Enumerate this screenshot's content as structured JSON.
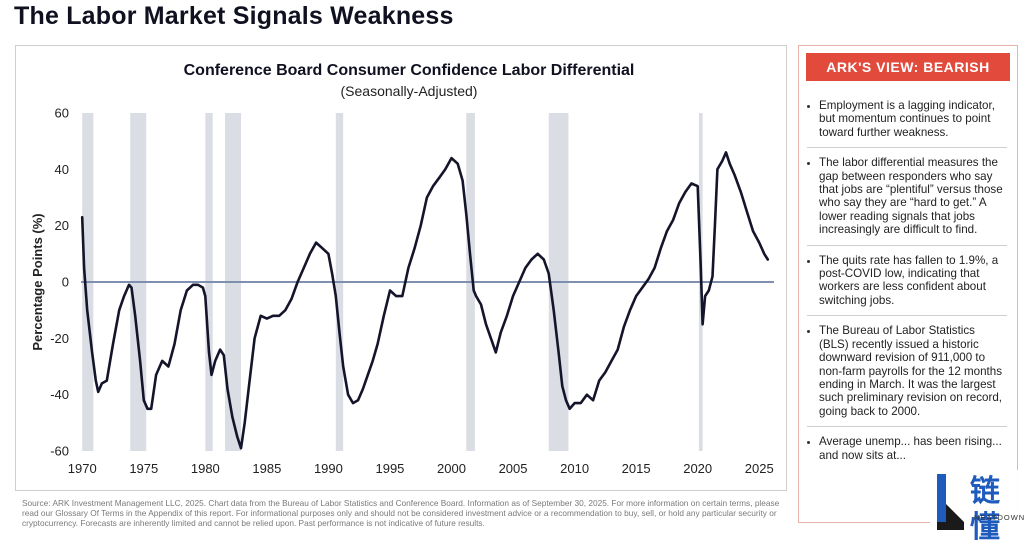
{
  "page_title": "The Labor Market Signals Weakness",
  "source_note": "Source: ARK Investment Management LLC, 2025. Chart data from the Bureau of Labor Statistics and Conference Board. Information as of September 30, 2025. For more information on certain terms, please read our Glossary Of Terms in the Appendix of this report. For informational purposes only and should not be considered investment advice or a recommendation to buy, sell, or hold any particular security or cryptocurrency. Forecasts are inherently limited and cannot be relied upon. Past performance is not indicative of future results.",
  "view_panel": {
    "header": "ARK'S VIEW: BEARISH",
    "items": [
      "Employment is a lagging indicator, but momentum continues to point toward further weakness.",
      "The labor differential measures the gap between responders who say that jobs are “plentiful” versus those who say they are “hard to get.” A lower reading signals that jobs increasingly are difficult to find.",
      "The quits rate has fallen to 1.9%, a post-COVID low, indicating that workers are less confident about switching jobs.",
      "The Bureau of Labor Statistics (BLS) recently issued a historic downward revision of 911,000 to non-farm payrolls for the 12 months ending in March. It was the largest such preliminary revision on record, going back to 2000.",
      "Average unemp... has been rising... and now sits at..."
    ]
  },
  "watermark": {
    "text": "链懂",
    "domain": "NEATDOWN.COM",
    "logo_color": "#1e5bbd"
  },
  "colors": {
    "line": "#14142b",
    "zero_line": "#7f8fb0",
    "recession": "#dadde3",
    "accent": "#e24a3c"
  },
  "chart_data": {
    "type": "line",
    "title": "Conference Board Consumer Confidence Labor Differential",
    "subtitle": "(Seasonally-Adjusted)",
    "xlabel": "",
    "ylabel": "Percentage Points (%)",
    "xlim": [
      1969.9,
      2026.2
    ],
    "ylim": [
      -60,
      60
    ],
    "x_ticks": [
      1970,
      1975,
      1980,
      1985,
      1990,
      1995,
      2000,
      2005,
      2010,
      2015,
      2020,
      2025
    ],
    "y_ticks": [
      60,
      40,
      20,
      0,
      -20,
      -40,
      -60
    ],
    "grid": false,
    "legend": "none",
    "reference_line_y": 0,
    "recessions": [
      [
        1970.0,
        1970.9
      ],
      [
        1973.9,
        1975.2
      ],
      [
        1980.0,
        1980.6
      ],
      [
        1981.6,
        1982.9
      ],
      [
        1990.6,
        1991.2
      ],
      [
        2001.2,
        2001.9
      ],
      [
        2007.9,
        2009.5
      ],
      [
        2020.1,
        2020.4
      ]
    ],
    "series": [
      {
        "points": [
          [
            1970.0,
            23
          ],
          [
            1970.15,
            5
          ],
          [
            1970.4,
            -10
          ],
          [
            1970.8,
            -25
          ],
          [
            1971.1,
            -35
          ],
          [
            1971.3,
            -39
          ],
          [
            1971.6,
            -36
          ],
          [
            1972.0,
            -35
          ],
          [
            1972.5,
            -22
          ],
          [
            1973.0,
            -10
          ],
          [
            1973.4,
            -5
          ],
          [
            1973.8,
            -1
          ],
          [
            1974.0,
            -2
          ],
          [
            1974.3,
            -12
          ],
          [
            1974.7,
            -28
          ],
          [
            1975.0,
            -42
          ],
          [
            1975.3,
            -45
          ],
          [
            1975.6,
            -45
          ],
          [
            1976.0,
            -33
          ],
          [
            1976.5,
            -28
          ],
          [
            1977.0,
            -30
          ],
          [
            1977.5,
            -22
          ],
          [
            1978.0,
            -10
          ],
          [
            1978.5,
            -3
          ],
          [
            1979.0,
            -1
          ],
          [
            1979.4,
            -1
          ],
          [
            1979.8,
            -2
          ],
          [
            1980.0,
            -5
          ],
          [
            1980.3,
            -25
          ],
          [
            1980.5,
            -33
          ],
          [
            1980.8,
            -28
          ],
          [
            1981.2,
            -24
          ],
          [
            1981.5,
            -26
          ],
          [
            1981.8,
            -38
          ],
          [
            1982.2,
            -48
          ],
          [
            1982.6,
            -55
          ],
          [
            1982.9,
            -59
          ],
          [
            1983.2,
            -50
          ],
          [
            1983.6,
            -35
          ],
          [
            1984.0,
            -20
          ],
          [
            1984.5,
            -12
          ],
          [
            1985.0,
            -13
          ],
          [
            1985.5,
            -12
          ],
          [
            1986.0,
            -12
          ],
          [
            1986.5,
            -10
          ],
          [
            1987.0,
            -6
          ],
          [
            1987.5,
            0
          ],
          [
            1988.0,
            5
          ],
          [
            1988.5,
            10
          ],
          [
            1989.0,
            14
          ],
          [
            1989.5,
            12
          ],
          [
            1990.0,
            10
          ],
          [
            1990.3,
            3
          ],
          [
            1990.6,
            -5
          ],
          [
            1990.9,
            -18
          ],
          [
            1991.2,
            -30
          ],
          [
            1991.6,
            -40
          ],
          [
            1992.0,
            -43
          ],
          [
            1992.4,
            -42
          ],
          [
            1992.8,
            -38
          ],
          [
            1993.2,
            -33
          ],
          [
            1993.6,
            -28
          ],
          [
            1994.0,
            -22
          ],
          [
            1994.5,
            -12
          ],
          [
            1995.0,
            -3
          ],
          [
            1995.5,
            -5
          ],
          [
            1996.0,
            -5
          ],
          [
            1996.5,
            5
          ],
          [
            1997.0,
            12
          ],
          [
            1997.5,
            20
          ],
          [
            1998.0,
            30
          ],
          [
            1998.5,
            34
          ],
          [
            1999.0,
            37
          ],
          [
            1999.5,
            40
          ],
          [
            2000.0,
            44
          ],
          [
            2000.5,
            42
          ],
          [
            2000.9,
            36
          ],
          [
            2001.2,
            24
          ],
          [
            2001.5,
            10
          ],
          [
            2001.8,
            -3
          ],
          [
            2002.0,
            -5
          ],
          [
            2002.4,
            -8
          ],
          [
            2002.8,
            -15
          ],
          [
            2003.2,
            -20
          ],
          [
            2003.6,
            -25
          ],
          [
            2004.0,
            -18
          ],
          [
            2004.5,
            -12
          ],
          [
            2005.0,
            -5
          ],
          [
            2005.5,
            0
          ],
          [
            2006.0,
            5
          ],
          [
            2006.5,
            8
          ],
          [
            2007.0,
            10
          ],
          [
            2007.5,
            8
          ],
          [
            2007.9,
            3
          ],
          [
            2008.3,
            -10
          ],
          [
            2008.7,
            -25
          ],
          [
            2009.0,
            -37
          ],
          [
            2009.3,
            -42
          ],
          [
            2009.6,
            -45
          ],
          [
            2010.0,
            -43
          ],
          [
            2010.5,
            -43
          ],
          [
            2011.0,
            -40
          ],
          [
            2011.5,
            -42
          ],
          [
            2012.0,
            -35
          ],
          [
            2012.5,
            -32
          ],
          [
            2013.0,
            -28
          ],
          [
            2013.5,
            -24
          ],
          [
            2014.0,
            -16
          ],
          [
            2014.5,
            -10
          ],
          [
            2015.0,
            -5
          ],
          [
            2015.5,
            -2
          ],
          [
            2016.0,
            1
          ],
          [
            2016.5,
            5
          ],
          [
            2017.0,
            12
          ],
          [
            2017.5,
            18
          ],
          [
            2018.0,
            22
          ],
          [
            2018.5,
            28
          ],
          [
            2019.0,
            32
          ],
          [
            2019.5,
            35
          ],
          [
            2020.0,
            34
          ],
          [
            2020.25,
            5
          ],
          [
            2020.4,
            -15
          ],
          [
            2020.6,
            -5
          ],
          [
            2020.9,
            -3
          ],
          [
            2021.2,
            2
          ],
          [
            2021.4,
            20
          ],
          [
            2021.6,
            40
          ],
          [
            2022.0,
            43
          ],
          [
            2022.3,
            46
          ],
          [
            2022.6,
            42
          ],
          [
            2023.0,
            38
          ],
          [
            2023.5,
            32
          ],
          [
            2024.0,
            25
          ],
          [
            2024.5,
            18
          ],
          [
            2025.0,
            14
          ],
          [
            2025.4,
            10
          ],
          [
            2025.7,
            8
          ]
        ]
      }
    ]
  }
}
